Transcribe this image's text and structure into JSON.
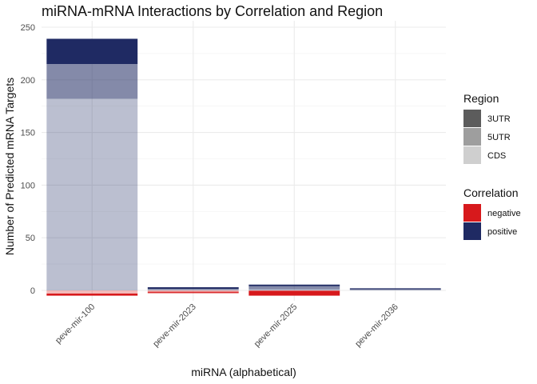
{
  "chart_data": {
    "type": "bar",
    "stacked": true,
    "title": "miRNA-mRNA Interactions by Correlation and Region",
    "xlabel": "miRNA (alphabetical)",
    "ylabel": "Number of Predicted mRNA Targets",
    "categories": [
      "peve-mir-100",
      "peve-mir-2023",
      "peve-mir-2025",
      "peve-mir-2036"
    ],
    "ylim": [
      -6,
      250
    ],
    "yticks": [
      0,
      50,
      100,
      150,
      200,
      250
    ],
    "grid": true,
    "positive_segments": [
      [
        {
          "region": "CDS",
          "value": 182
        },
        {
          "region": "5UTR",
          "value": 33
        },
        {
          "region": "3UTR",
          "value": 24
        }
      ],
      [
        {
          "region": "CDS",
          "value": 0.5
        },
        {
          "region": "5UTR",
          "value": 1
        },
        {
          "region": "3UTR",
          "value": 1.5
        }
      ],
      [
        {
          "region": "CDS",
          "value": 1
        },
        {
          "region": "5UTR",
          "value": 3
        },
        {
          "region": "3UTR",
          "value": 1.5
        }
      ],
      [
        {
          "region": "CDS",
          "value": 0.5
        },
        {
          "region": "5UTR",
          "value": 0.5
        },
        {
          "region": "3UTR",
          "value": 1
        }
      ]
    ],
    "negative_segments": [
      [
        {
          "region": "CDS",
          "value": 3
        },
        {
          "region": "5UTR",
          "value": 0
        },
        {
          "region": "3UTR",
          "value": 2
        }
      ],
      [
        {
          "region": "CDS",
          "value": 0.8
        },
        {
          "region": "5UTR",
          "value": 0.8
        },
        {
          "region": "3UTR",
          "value": 1
        }
      ],
      [
        {
          "region": "CDS",
          "value": 0
        },
        {
          "region": "5UTR",
          "value": 0.5
        },
        {
          "region": "3UTR",
          "value": 4.5
        }
      ],
      [
        {
          "region": "CDS",
          "value": 0
        },
        {
          "region": "5UTR",
          "value": 0
        },
        {
          "region": "3UTR",
          "value": 0
        }
      ]
    ],
    "legends": [
      {
        "title": "Region",
        "items": [
          {
            "label": "3UTR",
            "color": "#5c5c5c"
          },
          {
            "label": "5UTR",
            "color": "#9e9e9e"
          },
          {
            "label": "CDS",
            "color": "#cfcfcf"
          }
        ]
      },
      {
        "title": "Correlation",
        "items": [
          {
            "label": "negative",
            "color": "#d7191c"
          },
          {
            "label": "positive",
            "color": "#1f2a63"
          }
        ]
      }
    ],
    "colors": {
      "positive": "#1f2a63",
      "negative": "#d7191c"
    },
    "region_alpha": {
      "3UTR": 1.0,
      "5UTR": 0.55,
      "CDS": 0.3
    }
  }
}
